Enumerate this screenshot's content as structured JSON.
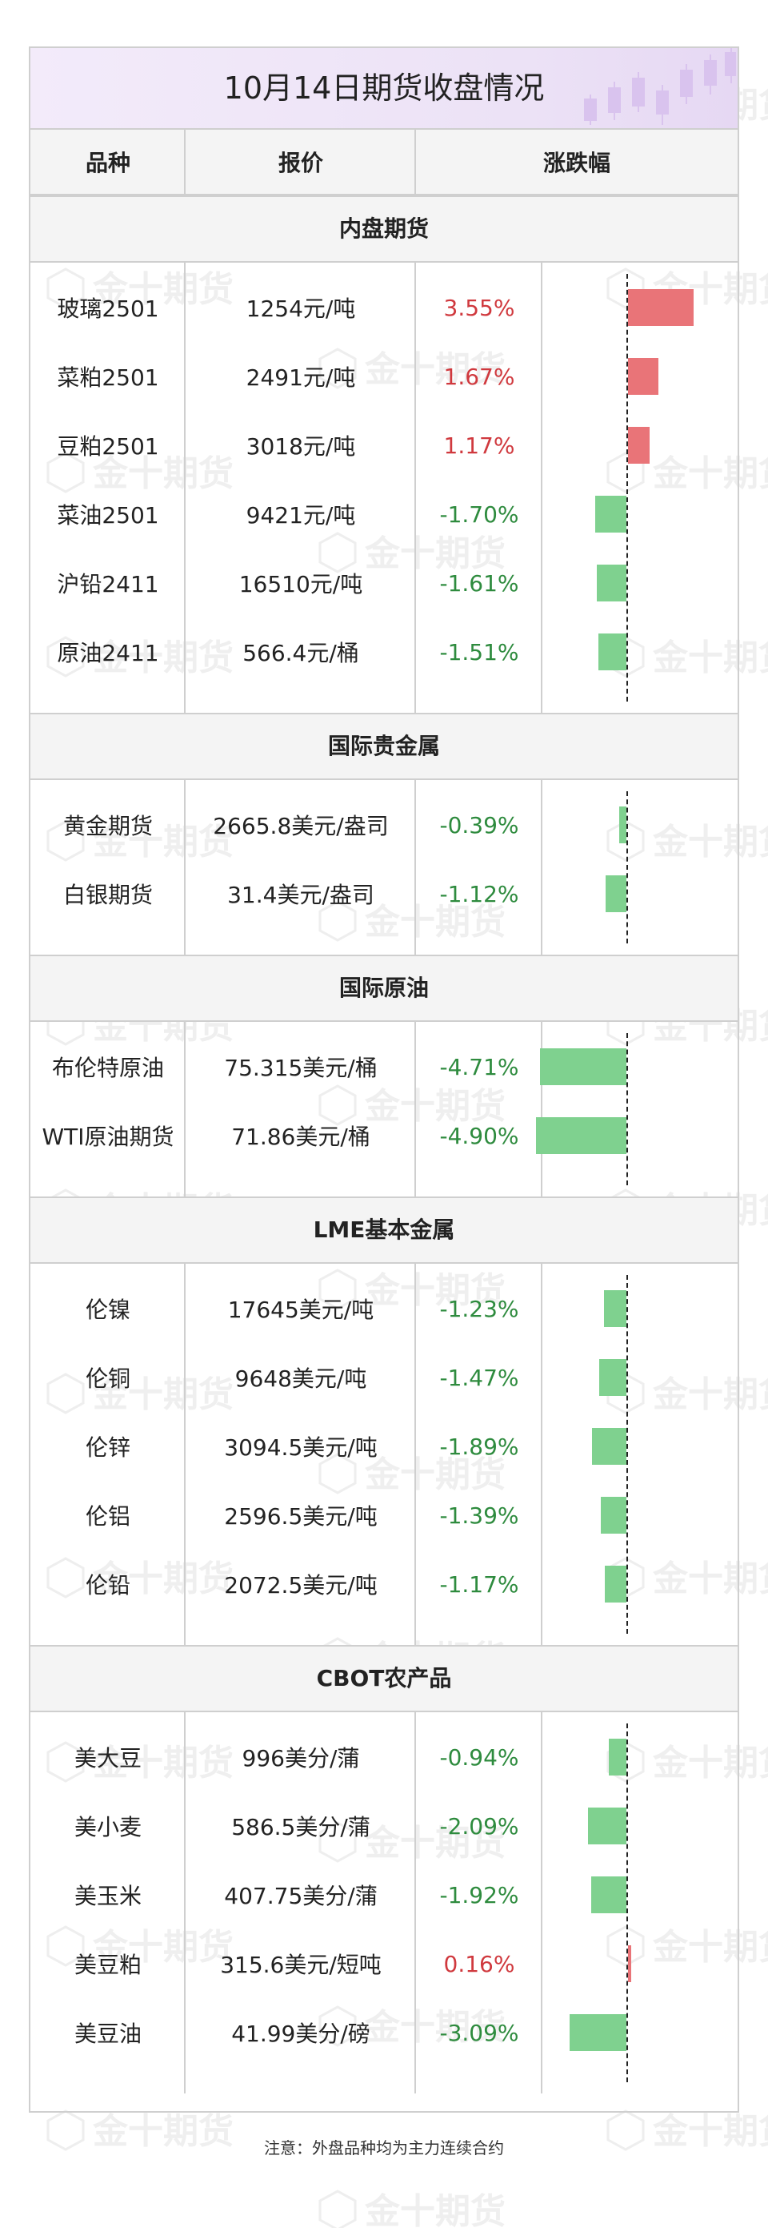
{
  "title": "10月14日期货收盘情况",
  "header": {
    "col1": "品种",
    "col2": "报价",
    "col3": "涨跌幅"
  },
  "sections": [
    {
      "name": "内盘期货",
      "rows": [
        {
          "name": "玻璃2501",
          "price": "1254元/吨",
          "change": "3.55%",
          "value": 3.55
        },
        {
          "name": "菜粕2501",
          "price": "2491元/吨",
          "change": "1.67%",
          "value": 1.67
        },
        {
          "name": "豆粕2501",
          "price": "3018元/吨",
          "change": "1.17%",
          "value": 1.17
        },
        {
          "name": "菜油2501",
          "price": "9421元/吨",
          "change": "-1.70%",
          "value": -1.7
        },
        {
          "name": "沪铅2411",
          "price": "16510元/吨",
          "change": "-1.61%",
          "value": -1.61
        },
        {
          "name": "原油2411",
          "price": "566.4元/桶",
          "change": "-1.51%",
          "value": -1.51
        }
      ]
    },
    {
      "name": "国际贵金属",
      "rows": [
        {
          "name": "黄金期货",
          "price": "2665.8美元/盎司",
          "change": "-0.39%",
          "value": -0.39
        },
        {
          "name": "白银期货",
          "price": "31.4美元/盎司",
          "change": "-1.12%",
          "value": -1.12
        }
      ]
    },
    {
      "name": "国际原油",
      "rows": [
        {
          "name": "布伦特原油",
          "price": "75.315美元/桶",
          "change": "-4.71%",
          "value": -4.71
        },
        {
          "name": "WTI原油期货",
          "price": "71.86美元/桶",
          "change": "-4.90%",
          "value": -4.9
        }
      ]
    },
    {
      "name": "LME基本金属",
      "rows": [
        {
          "name": "伦镍",
          "price": "17645美元/吨",
          "change": "-1.23%",
          "value": -1.23
        },
        {
          "name": "伦铜",
          "price": "9648美元/吨",
          "change": "-1.47%",
          "value": -1.47
        },
        {
          "name": "伦锌",
          "price": "3094.5美元/吨",
          "change": "-1.89%",
          "value": -1.89
        },
        {
          "name": "伦铝",
          "price": "2596.5美元/吨",
          "change": "-1.39%",
          "value": -1.39
        },
        {
          "name": "伦铅",
          "price": "2072.5美元/吨",
          "change": "-1.17%",
          "value": -1.17
        }
      ]
    },
    {
      "name": "CBOT农产品",
      "rows": [
        {
          "name": "美大豆",
          "price": "996美分/蒲",
          "change": "-0.94%",
          "value": -0.94
        },
        {
          "name": "美小麦",
          "price": "586.5美分/蒲",
          "change": "-2.09%",
          "value": -2.09
        },
        {
          "name": "美玉米",
          "price": "407.75美分/蒲",
          "change": "-1.92%",
          "value": -1.92
        },
        {
          "name": "美豆粕",
          "price": "315.6美元/短吨",
          "change": "0.16%",
          "value": 0.16
        },
        {
          "name": "美豆油",
          "price": "41.99美分/磅",
          "change": "-3.09%",
          "value": -3.09
        }
      ]
    }
  ],
  "note": "注意：外盘品种均为主力连续合约",
  "watermark": "金十期货",
  "colors": {
    "positive": "#d0393e",
    "negative": "#2e8b3e",
    "bar_positive": "#e97478",
    "bar_negative": "#7fd18f",
    "title_bg": "#ece2f6"
  }
}
